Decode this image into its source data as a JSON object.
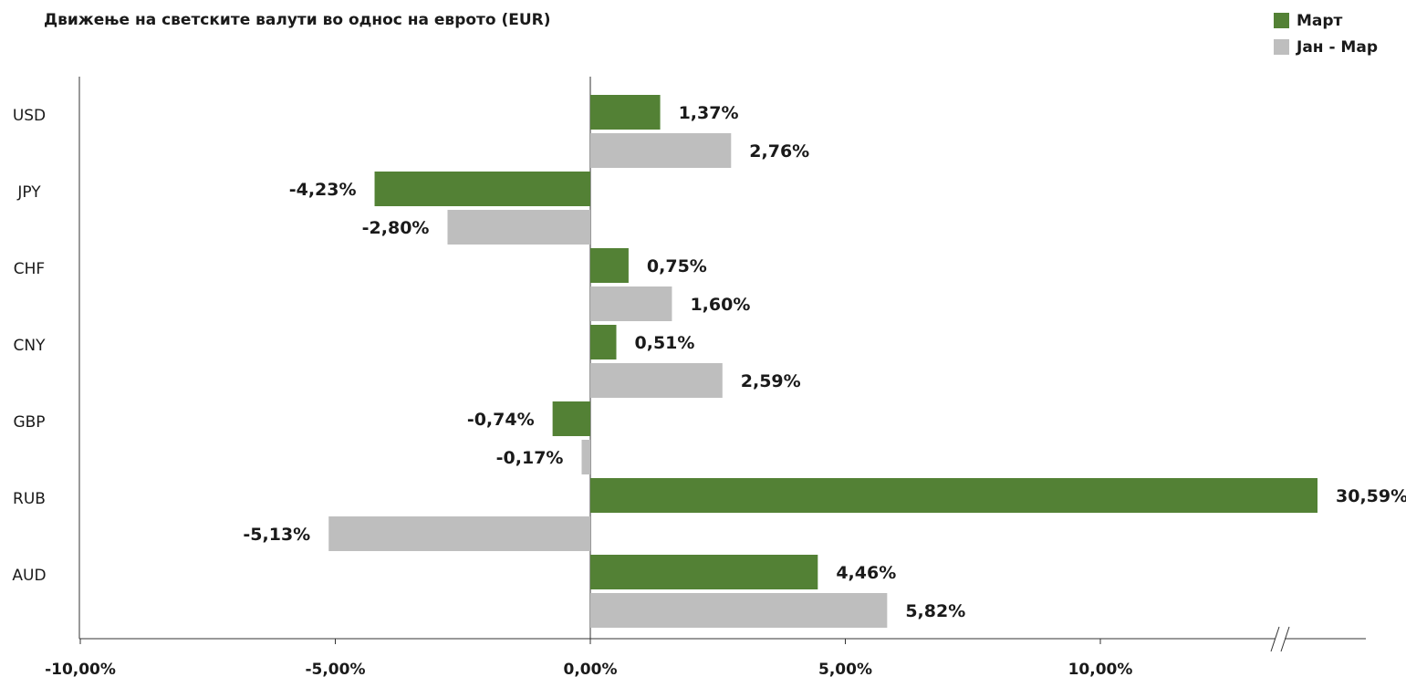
{
  "title": "Движење на светските валути во однос на еврото (EUR)",
  "legend": {
    "items": [
      {
        "label": "Март",
        "color": "#538135"
      },
      {
        "label": "Јан - Мар",
        "color": "#bebebe"
      }
    ],
    "placement": "top-right"
  },
  "chart_data": {
    "type": "bar",
    "orientation": "horizontal",
    "title": "Движење на светските валути во однос на еврото (EUR)",
    "categories": [
      "USD",
      "JPY",
      "CHF",
      "CNY",
      "GBP",
      "RUB",
      "AUD"
    ],
    "series": [
      {
        "name": "Март",
        "color": "#538135",
        "values": [
          1.37,
          -4.23,
          0.75,
          0.51,
          -0.74,
          30.59,
          4.46
        ],
        "labels": [
          "1,37%",
          "-4,23%",
          "0,75%",
          "0,51%",
          "-0,74%",
          "30,59%",
          "4,46%"
        ]
      },
      {
        "name": "Јан - Мар",
        "color": "#bebebe",
        "values": [
          2.76,
          -2.8,
          1.6,
          2.59,
          -0.17,
          -5.13,
          5.82
        ],
        "labels": [
          "2,76%",
          "-2,80%",
          "1,60%",
          "2,59%",
          "-0,17%",
          "-5,13%",
          "5,82%"
        ]
      }
    ],
    "x_ticks": [
      "-10,00%",
      "-5,00%",
      "0,00%",
      "5,00%",
      "10,00%"
    ],
    "xlim": [
      -10,
      15
    ],
    "axis_break": true,
    "grid": false
  }
}
